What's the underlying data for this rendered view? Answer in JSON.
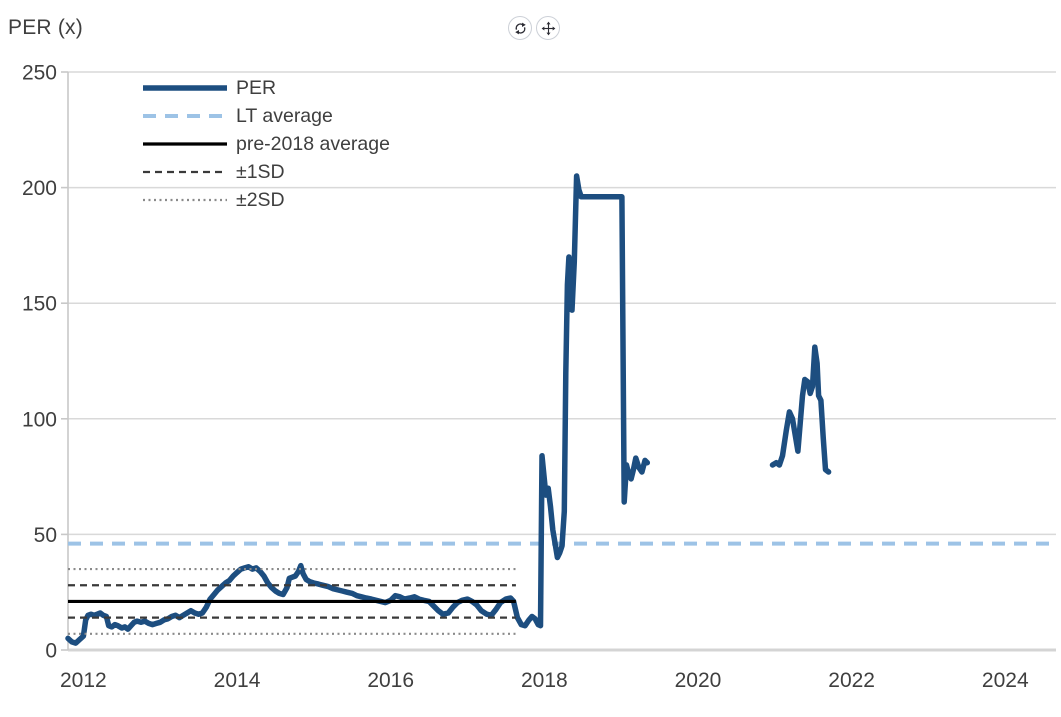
{
  "header": {
    "title": "PER (x)"
  },
  "toolbar": {
    "buttons": [
      {
        "name": "refresh",
        "icon": "refresh-icon"
      },
      {
        "name": "move",
        "icon": "move-icon"
      }
    ]
  },
  "chart_data": {
    "type": "line",
    "title": "PER (x)",
    "xlabel": "",
    "ylabel": "PER (x)",
    "x_domain": [
      2011.8,
      2024.66
    ],
    "y_domain": [
      0,
      250
    ],
    "x_ticks": [
      2012,
      2014,
      2016,
      2018,
      2020,
      2022,
      2024
    ],
    "y_ticks": [
      0,
      50,
      100,
      150,
      200,
      250
    ],
    "grid": "horizontal",
    "legend_position": "top-left",
    "colors": {
      "per": "#1d4e80",
      "lt_average": "#9dc3e6",
      "pre2018_average": "#000000",
      "sd1": "#3a3a3a",
      "sd2": "#8a8a8a",
      "grid": "#d9d9d9",
      "axis": "#c8c8c8",
      "text": "#3f3f3f"
    },
    "legend": [
      {
        "label": "PER",
        "color": "#1d4e80",
        "width": 5.5,
        "dash": ""
      },
      {
        "label": "LT average",
        "color": "#9dc3e6",
        "width": 4,
        "dash": "13 9"
      },
      {
        "label": "pre-2018 average",
        "color": "#000000",
        "width": 3.2,
        "dash": ""
      },
      {
        "label": "±1SD",
        "color": "#3a3a3a",
        "width": 2.3,
        "dash": "7 5"
      },
      {
        "label": "±2SD",
        "color": "#8a8a8a",
        "width": 2.2,
        "dash": "2 3.5"
      }
    ],
    "reference_lines": [
      {
        "name": "LT average",
        "value": 46,
        "x_start": 2011.8,
        "x_end": 2024.66,
        "color": "#9dc3e6",
        "width": 4,
        "dash": "13 9",
        "layer": "under-series"
      },
      {
        "name": "pre-2018 average",
        "value": 21,
        "x_start": 2011.8,
        "x_end": 2017.63,
        "color": "#000000",
        "width": 3.2,
        "dash": "",
        "layer": "over-series"
      },
      {
        "name": "+1SD",
        "value": 28,
        "x_start": 2011.8,
        "x_end": 2017.63,
        "color": "#3a3a3a",
        "width": 2.3,
        "dash": "7 5",
        "layer": "over-series"
      },
      {
        "name": "-1SD",
        "value": 14,
        "x_start": 2011.8,
        "x_end": 2017.63,
        "color": "#3a3a3a",
        "width": 2.3,
        "dash": "7 5",
        "layer": "over-series"
      },
      {
        "name": "+2SD",
        "value": 35,
        "x_start": 2011.8,
        "x_end": 2017.63,
        "color": "#8a8a8a",
        "width": 2.2,
        "dash": "2 3.5",
        "layer": "over-series"
      },
      {
        "name": "-2SD",
        "value": 7,
        "x_start": 2011.8,
        "x_end": 2017.63,
        "color": "#8a8a8a",
        "width": 2.2,
        "dash": "2 3.5",
        "layer": "over-series"
      }
    ],
    "series": [
      {
        "name": "PER",
        "color": "#1d4e80",
        "width": 5.5,
        "segments": [
          [
            [
              2011.8,
              5
            ],
            [
              2011.85,
              3.5
            ],
            [
              2011.9,
              3
            ],
            [
              2011.95,
              4.5
            ],
            [
              2012.0,
              6
            ],
            [
              2012.03,
              13
            ],
            [
              2012.06,
              15
            ],
            [
              2012.1,
              15.5
            ],
            [
              2012.14,
              15
            ],
            [
              2012.18,
              15.5
            ],
            [
              2012.22,
              16
            ],
            [
              2012.26,
              15
            ],
            [
              2012.3,
              14.5
            ],
            [
              2012.33,
              10.5
            ],
            [
              2012.37,
              10
            ],
            [
              2012.41,
              11
            ],
            [
              2012.45,
              10.5
            ],
            [
              2012.5,
              9.5
            ],
            [
              2012.54,
              10
            ],
            [
              2012.58,
              9
            ],
            [
              2012.62,
              10.5
            ],
            [
              2012.66,
              12
            ],
            [
              2012.7,
              12.5
            ],
            [
              2012.75,
              12
            ],
            [
              2012.8,
              12.5
            ],
            [
              2012.85,
              11.5
            ],
            [
              2012.9,
              11
            ],
            [
              2012.95,
              11.5
            ],
            [
              2013.0,
              12
            ],
            [
              2013.05,
              13
            ],
            [
              2013.1,
              13.5
            ],
            [
              2013.15,
              14.5
            ],
            [
              2013.2,
              15
            ],
            [
              2013.25,
              14
            ],
            [
              2013.3,
              15
            ],
            [
              2013.35,
              16
            ],
            [
              2013.4,
              17
            ],
            [
              2013.45,
              16
            ],
            [
              2013.5,
              15.5
            ],
            [
              2013.55,
              16
            ],
            [
              2013.6,
              18.5
            ],
            [
              2013.65,
              22
            ],
            [
              2013.7,
              24
            ],
            [
              2013.75,
              26
            ],
            [
              2013.8,
              27.5
            ],
            [
              2013.85,
              29
            ],
            [
              2013.9,
              30
            ],
            [
              2013.95,
              32
            ],
            [
              2014.0,
              33.5
            ],
            [
              2014.05,
              35
            ],
            [
              2014.1,
              35.5
            ],
            [
              2014.15,
              36
            ],
            [
              2014.2,
              35
            ],
            [
              2014.25,
              35.5
            ],
            [
              2014.3,
              34
            ],
            [
              2014.35,
              32
            ],
            [
              2014.4,
              29
            ],
            [
              2014.45,
              27
            ],
            [
              2014.5,
              25.5
            ],
            [
              2014.55,
              24.5
            ],
            [
              2014.6,
              24
            ],
            [
              2014.65,
              27
            ],
            [
              2014.68,
              31
            ],
            [
              2014.72,
              31.5
            ],
            [
              2014.76,
              32
            ],
            [
              2014.8,
              34
            ],
            [
              2014.83,
              36.5
            ],
            [
              2014.86,
              33
            ],
            [
              2014.9,
              30.5
            ],
            [
              2014.95,
              29.5
            ],
            [
              2015.0,
              29
            ],
            [
              2015.06,
              28.5
            ],
            [
              2015.12,
              28
            ],
            [
              2015.18,
              27.5
            ],
            [
              2015.25,
              26.5
            ],
            [
              2015.31,
              26
            ],
            [
              2015.37,
              25.5
            ],
            [
              2015.43,
              25
            ],
            [
              2015.5,
              24.5
            ],
            [
              2015.56,
              23.5
            ],
            [
              2015.62,
              23
            ],
            [
              2015.68,
              22.5
            ],
            [
              2015.75,
              22
            ],
            [
              2015.81,
              21.5
            ],
            [
              2015.87,
              21
            ],
            [
              2015.93,
              20.5
            ],
            [
              2016.0,
              21.5
            ],
            [
              2016.06,
              23.5
            ],
            [
              2016.12,
              23
            ],
            [
              2016.18,
              22
            ],
            [
              2016.25,
              22.5
            ],
            [
              2016.31,
              23
            ],
            [
              2016.37,
              22
            ],
            [
              2016.43,
              21.5
            ],
            [
              2016.5,
              21
            ],
            [
              2016.56,
              19
            ],
            [
              2016.62,
              17
            ],
            [
              2016.68,
              15.5
            ],
            [
              2016.75,
              16
            ],
            [
              2016.81,
              18.5
            ],
            [
              2016.87,
              20.5
            ],
            [
              2016.93,
              21.5
            ],
            [
              2017.0,
              22
            ],
            [
              2017.06,
              21
            ],
            [
              2017.12,
              19.5
            ],
            [
              2017.18,
              17
            ],
            [
              2017.25,
              15.5
            ],
            [
              2017.31,
              15
            ],
            [
              2017.37,
              17.5
            ],
            [
              2017.43,
              20.5
            ],
            [
              2017.5,
              22
            ],
            [
              2017.56,
              22.5
            ],
            [
              2017.6,
              21
            ],
            [
              2017.65,
              14
            ],
            [
              2017.7,
              11
            ],
            [
              2017.75,
              10.5
            ],
            [
              2017.8,
              13
            ],
            [
              2017.84,
              14.5
            ],
            [
              2017.88,
              13.5
            ],
            [
              2017.92,
              11
            ],
            [
              2017.95,
              10.5
            ],
            [
              2017.97,
              84
            ],
            [
              2018.02,
              67
            ],
            [
              2018.05,
              70
            ],
            [
              2018.08,
              62
            ],
            [
              2018.11,
              52
            ],
            [
              2018.14,
              46
            ],
            [
              2018.17,
              40
            ],
            [
              2018.2,
              42
            ],
            [
              2018.23,
              45
            ],
            [
              2018.26,
              60
            ],
            [
              2018.28,
              120
            ],
            [
              2018.3,
              158
            ],
            [
              2018.32,
              170
            ],
            [
              2018.34,
              155
            ],
            [
              2018.36,
              147
            ],
            [
              2018.39,
              168
            ],
            [
              2018.42,
              205
            ],
            [
              2018.45,
              199
            ],
            [
              2018.48,
              196
            ],
            [
              2019.01,
              196
            ],
            [
              2019.04,
              64
            ],
            [
              2019.07,
              80
            ],
            [
              2019.1,
              76
            ],
            [
              2019.13,
              74
            ],
            [
              2019.16,
              78
            ],
            [
              2019.19,
              83
            ],
            [
              2019.23,
              79
            ],
            [
              2019.27,
              77
            ],
            [
              2019.31,
              82
            ],
            [
              2019.34,
              81
            ]
          ],
          [
            [
              2020.97,
              80
            ],
            [
              2021.02,
              81
            ],
            [
              2021.06,
              80
            ],
            [
              2021.1,
              84
            ],
            [
              2021.15,
              95
            ],
            [
              2021.19,
              103
            ],
            [
              2021.23,
              100
            ],
            [
              2021.27,
              92
            ],
            [
              2021.3,
              86
            ],
            [
              2021.33,
              98
            ],
            [
              2021.36,
              110
            ],
            [
              2021.39,
              117
            ],
            [
              2021.43,
              116
            ],
            [
              2021.46,
              111
            ],
            [
              2021.49,
              114
            ],
            [
              2021.52,
              131
            ],
            [
              2021.55,
              124
            ],
            [
              2021.57,
              110
            ],
            [
              2021.6,
              108
            ],
            [
              2021.63,
              92
            ],
            [
              2021.66,
              78
            ],
            [
              2021.7,
              77
            ]
          ]
        ]
      }
    ]
  }
}
